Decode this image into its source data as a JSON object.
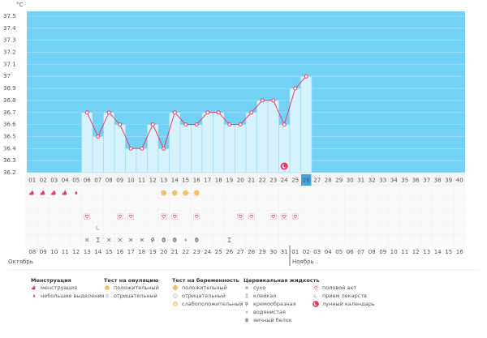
{
  "chart_data": {
    "type": "line",
    "y_unit": "°C",
    "categories": [
      "01",
      "02",
      "03",
      "04",
      "05",
      "06",
      "07",
      "08",
      "09",
      "10",
      "11",
      "12",
      "13",
      "14",
      "15",
      "16",
      "17",
      "18",
      "19",
      "20",
      "21",
      "22",
      "23",
      "24",
      "25",
      "26",
      "27",
      "28",
      "29",
      "30",
      "31",
      "32",
      "33",
      "34",
      "35",
      "36",
      "37",
      "38",
      "39",
      "40"
    ],
    "highlight_day": "26",
    "values": [
      null,
      null,
      null,
      null,
      null,
      36.7,
      36.5,
      36.7,
      36.6,
      36.4,
      36.4,
      36.6,
      36.4,
      36.7,
      36.6,
      36.6,
      36.7,
      36.7,
      36.6,
      36.6,
      36.7,
      36.8,
      36.8,
      36.6,
      36.9,
      37.0,
      null,
      null,
      null,
      null,
      null,
      null,
      null,
      null,
      null,
      null,
      null,
      null,
      null,
      null
    ],
    "color": "#e8416c",
    "ylim": [
      36.2,
      37.5
    ],
    "yticks": [
      36.2,
      36.3,
      36.4,
      36.5,
      36.6,
      36.7,
      36.8,
      36.9,
      37,
      37.1,
      37.2,
      37.3,
      37.4,
      37.5
    ],
    "grid": true,
    "dates": [
      {
        "label": "08"
      },
      {
        "label": "09"
      },
      {
        "label": "10"
      },
      {
        "label": "11"
      },
      {
        "label": "12"
      },
      {
        "label": "13",
        "weekend": true
      },
      {
        "label": "14",
        "weekend": true
      },
      {
        "label": "15"
      },
      {
        "label": "16"
      },
      {
        "label": "17"
      },
      {
        "label": "18"
      },
      {
        "label": "19"
      },
      {
        "label": "20",
        "weekend": true
      },
      {
        "label": "21",
        "weekend": true
      },
      {
        "label": "22"
      },
      {
        "label": "23"
      },
      {
        "label": "24"
      },
      {
        "label": "25"
      },
      {
        "label": "26"
      },
      {
        "label": "27",
        "weekend": true
      },
      {
        "label": "28",
        "weekend": true
      },
      {
        "label": "29"
      },
      {
        "label": "30"
      },
      {
        "label": "31"
      },
      {
        "label": "01"
      },
      {
        "label": "02"
      },
      {
        "label": "03",
        "weekend": true
      },
      {
        "label": "04",
        "weekend": true
      },
      {
        "label": "05"
      },
      {
        "label": "06"
      },
      {
        "label": "07"
      },
      {
        "label": "08"
      },
      {
        "label": "09"
      },
      {
        "label": "10",
        "weekend": true
      },
      {
        "label": "11",
        "weekend": true
      },
      {
        "label": "12"
      },
      {
        "label": "13"
      },
      {
        "label": "14"
      },
      {
        "label": "15"
      },
      {
        "label": "16"
      }
    ],
    "months": [
      {
        "name": "Октябрь",
        "from_day": "01"
      },
      {
        "name": "Ноябрь",
        "from_day": "25"
      }
    ],
    "markers": {
      "menstruation": [
        "01",
        "02",
        "03",
        "04"
      ],
      "spotting": [
        "05"
      ],
      "ovulation_positive": [
        "13",
        "14",
        "15",
        "16"
      ],
      "intercourse": [
        "06",
        "09",
        "10",
        "13",
        "14",
        "16",
        "20",
        "21",
        "23",
        "24",
        "25"
      ],
      "medication": [
        "07"
      ],
      "lunar": [
        "24"
      ],
      "fluid": [
        {
          "day": "06",
          "kind": "dry"
        },
        {
          "day": "07",
          "kind": "sticky"
        },
        {
          "day": "08",
          "kind": "dry"
        },
        {
          "day": "09",
          "kind": "dry"
        },
        {
          "day": "10",
          "kind": "dry"
        },
        {
          "day": "11",
          "kind": "dry"
        },
        {
          "day": "12",
          "kind": "creamy"
        },
        {
          "day": "13",
          "kind": "egg"
        },
        {
          "day": "14",
          "kind": "egg"
        },
        {
          "day": "15",
          "kind": "watery"
        },
        {
          "day": "16",
          "kind": "egg"
        },
        {
          "day": "19",
          "kind": "sticky"
        }
      ]
    },
    "legend": [
      {
        "title": "Менструация",
        "items": [
          "менструация",
          "небольшие выделения"
        ]
      },
      {
        "title": "Тест на овуляцию",
        "items": [
          "положительный",
          "отрицательный"
        ]
      },
      {
        "title": "Тест на беременность",
        "items": [
          "положительный",
          "отрицательный",
          "слабоположительный"
        ]
      },
      {
        "title": "Цервикальная жидкость",
        "items": [
          "сухо",
          "клейкая",
          "кремообразная",
          "водянистая",
          "яичный белок"
        ]
      },
      {
        "items": [
          "половой акт",
          "прием лекарств",
          "лунный календарь"
        ]
      }
    ]
  }
}
